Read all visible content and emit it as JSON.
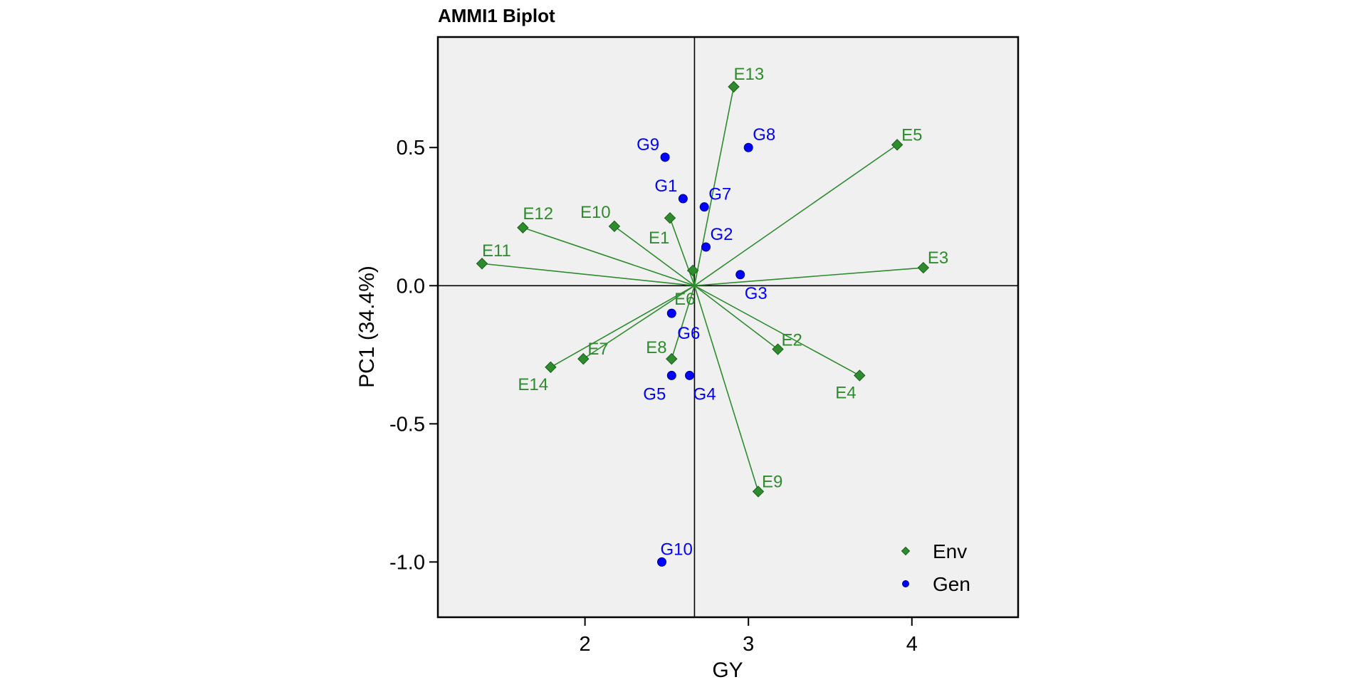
{
  "chart_data": {
    "type": "scatter",
    "title": "AMMI1 Biplot",
    "xlabel": "GY",
    "ylabel": "PC1 (34.4%)",
    "xlim": [
      1.1,
      4.65
    ],
    "ylim": [
      -1.2,
      0.9
    ],
    "xticks": [
      2,
      3,
      4
    ],
    "yticks": [
      0.5,
      0.0,
      -0.5,
      -1.0
    ],
    "ytick_labels": [
      "0.5",
      "0.0",
      "-0.5",
      "-1.0"
    ],
    "reference_lines": {
      "x": 2.67,
      "y": 0.0
    },
    "grid": false,
    "legend_position": "bottom-right",
    "colors": {
      "env": "#2e8b2e",
      "gen": "#0000ff",
      "panel_bg": "#f0f0f0"
    },
    "series": [
      {
        "name": "Env",
        "marker": "diamond",
        "points": [
          {
            "label": "E1",
            "x": 2.52,
            "y": 0.245
          },
          {
            "label": "E2",
            "x": 3.18,
            "y": -0.23
          },
          {
            "label": "E3",
            "x": 4.07,
            "y": 0.065
          },
          {
            "label": "E4",
            "x": 3.68,
            "y": -0.325
          },
          {
            "label": "E5",
            "x": 3.91,
            "y": 0.51
          },
          {
            "label": "E6",
            "x": 2.66,
            "y": 0.055
          },
          {
            "label": "E7",
            "x": 1.99,
            "y": -0.265
          },
          {
            "label": "E8",
            "x": 2.53,
            "y": -0.265
          },
          {
            "label": "E9",
            "x": 3.06,
            "y": -0.745
          },
          {
            "label": "E10",
            "x": 2.18,
            "y": 0.215
          },
          {
            "label": "E11",
            "x": 1.37,
            "y": 0.08
          },
          {
            "label": "E12",
            "x": 1.62,
            "y": 0.21
          },
          {
            "label": "E13",
            "x": 2.91,
            "y": 0.72
          },
          {
            "label": "E14",
            "x": 1.79,
            "y": -0.295
          }
        ]
      },
      {
        "name": "Gen",
        "marker": "circle",
        "points": [
          {
            "label": "G1",
            "x": 2.6,
            "y": 0.315
          },
          {
            "label": "G2",
            "x": 2.74,
            "y": 0.14
          },
          {
            "label": "G3",
            "x": 2.95,
            "y": 0.04
          },
          {
            "label": "G4",
            "x": 2.64,
            "y": -0.325
          },
          {
            "label": "G5",
            "x": 2.53,
            "y": -0.325
          },
          {
            "label": "G6",
            "x": 2.53,
            "y": -0.1
          },
          {
            "label": "G7",
            "x": 2.73,
            "y": 0.285
          },
          {
            "label": "G8",
            "x": 3.0,
            "y": 0.5
          },
          {
            "label": "G9",
            "x": 2.49,
            "y": 0.465
          },
          {
            "label": "G10",
            "x": 2.47,
            "y": -1.0
          }
        ]
      }
    ]
  }
}
